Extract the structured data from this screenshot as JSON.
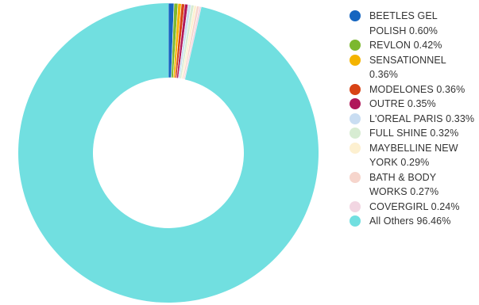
{
  "chart_data": {
    "type": "pie",
    "donut": true,
    "legend_position": "right",
    "slices": [
      {
        "label": "BEETLES GEL POLISH 0.60%",
        "value": 0.6,
        "color": "#1565c0"
      },
      {
        "label": "REVLON 0.42%",
        "value": 0.42,
        "color": "#7cb82f"
      },
      {
        "label": "SENSATIONNEL 0.36%",
        "value": 0.36,
        "color": "#f4b400"
      },
      {
        "label": "MODELONES 0.36%",
        "value": 0.36,
        "color": "#d84315"
      },
      {
        "label": "OUTRE 0.35%",
        "value": 0.35,
        "color": "#b0185a"
      },
      {
        "label": "L'OREAL PARIS 0.33%",
        "value": 0.33,
        "color": "#c9ddf2"
      },
      {
        "label": "FULL SHINE 0.32%",
        "value": 0.32,
        "color": "#d7ecd2"
      },
      {
        "label": "MAYBELLINE NEW YORK 0.29%",
        "value": 0.29,
        "color": "#fdf0d0"
      },
      {
        "label": "BATH & BODY WORKS 0.27%",
        "value": 0.27,
        "color": "#f6d5cc"
      },
      {
        "label": "COVERGIRL 0.24%",
        "value": 0.24,
        "color": "#f2d6e2"
      },
      {
        "label": "All Others 96.46%",
        "value": 96.46,
        "color": "#71dfe0"
      }
    ]
  }
}
